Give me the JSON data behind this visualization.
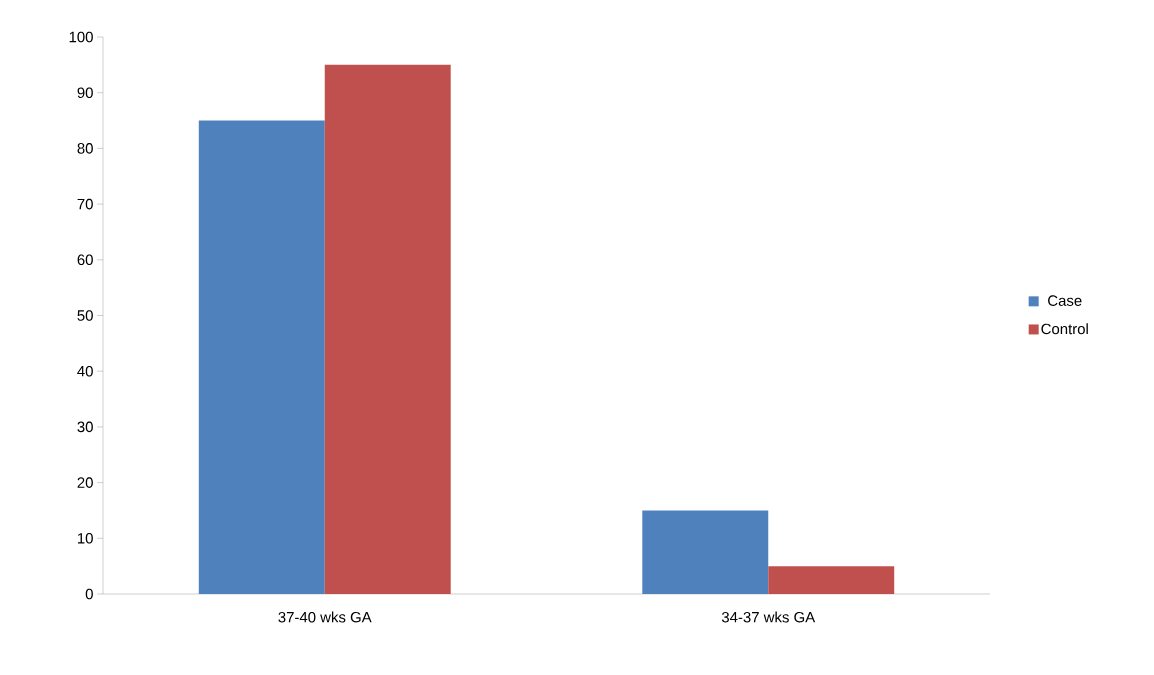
{
  "chart_data": {
    "type": "bar",
    "categories": [
      "37-40 wks GA",
      "34-37 wks GA"
    ],
    "series": [
      {
        "name": "Case",
        "color": "#4f81bd",
        "values": [
          85,
          15
        ]
      },
      {
        "name": "Control",
        "color": "#c0504d",
        "values": [
          95,
          5
        ]
      }
    ],
    "ylim": [
      0,
      100
    ],
    "yticks": [
      0,
      10,
      20,
      30,
      40,
      50,
      60,
      70,
      80,
      90,
      100
    ],
    "grid": false,
    "legend": "right"
  }
}
